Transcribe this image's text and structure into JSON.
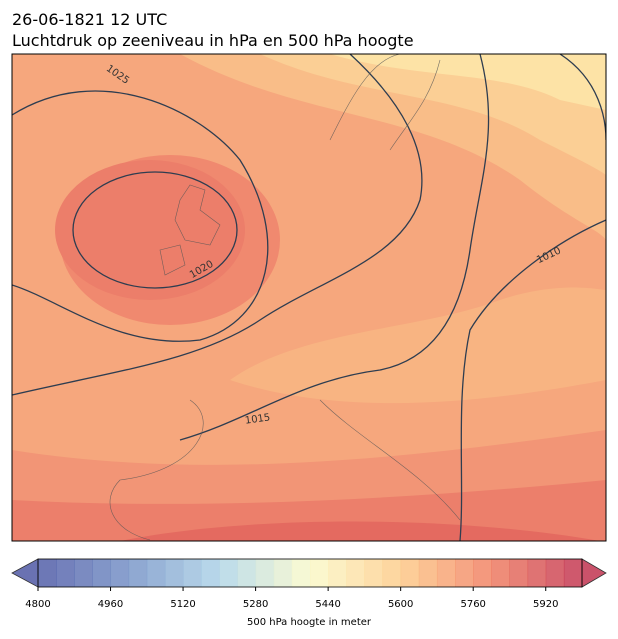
{
  "header": {
    "datetime": "26-06-1821 12 UTC",
    "title": "Luchtdruk op zeeniveau in hPa en 500 hPa hoogte"
  },
  "map": {
    "isobar_labels": [
      1025,
      1020,
      1015,
      1010
    ]
  },
  "colorbar": {
    "range": [
      4800,
      6000
    ],
    "ticks": [
      4800,
      4960,
      5120,
      5280,
      5440,
      5600,
      5760,
      5920
    ],
    "label": "500 hPa hoogte in meter"
  }
}
